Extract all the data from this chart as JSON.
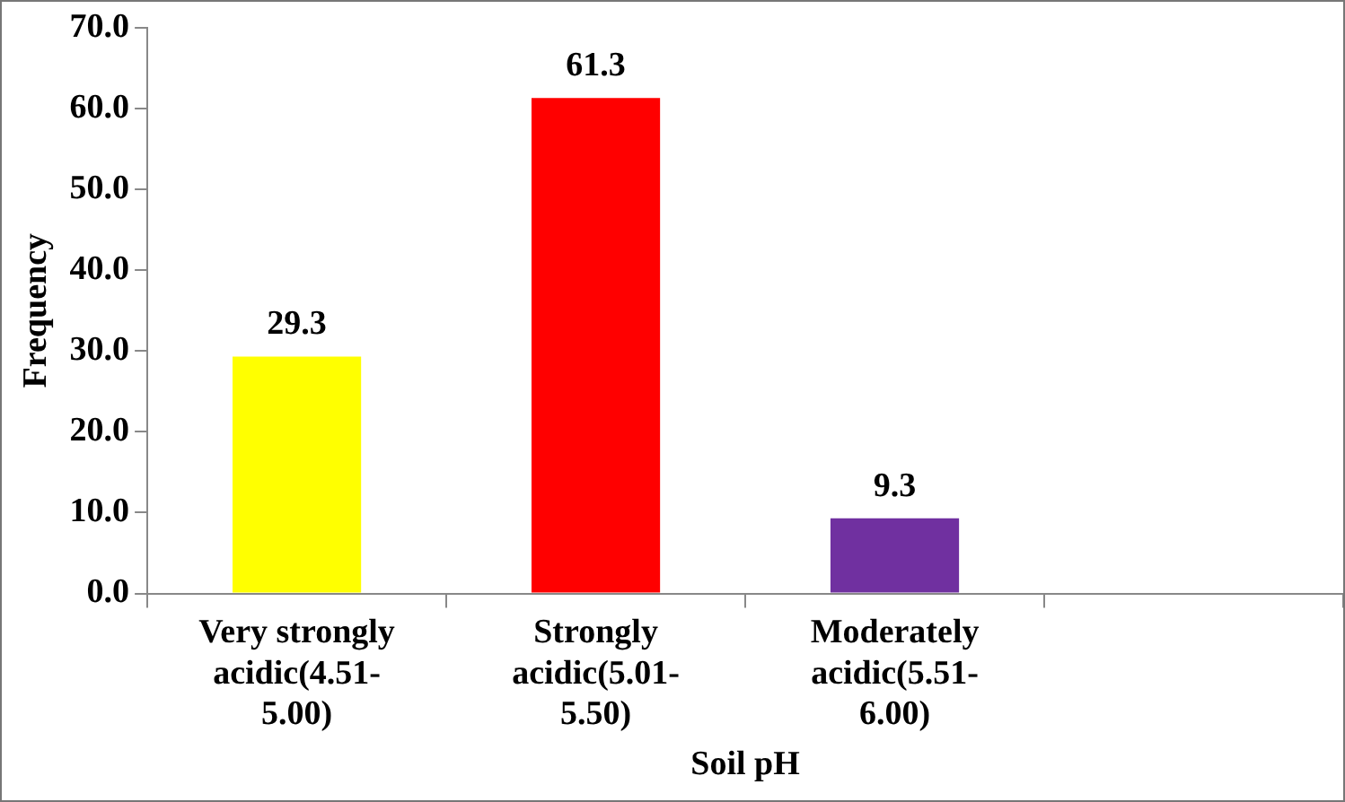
{
  "chart_data": {
    "type": "bar",
    "xlabel": "Soil pH",
    "ylabel": "Frequency",
    "categories": [
      "Very strongly acidic(4.51-5.00)",
      "Strongly acidic(5.01-5.50)",
      "Moderately acidic(5.51-6.00)",
      null
    ],
    "values": [
      29.3,
      61.3,
      9.3,
      null
    ],
    "colors": [
      "#ffff00",
      "#ff0000",
      "#7030a0",
      "#000000"
    ],
    "ylim": [
      0,
      70
    ],
    "yticks": [
      {
        "value": 0,
        "label": "0.0"
      },
      {
        "value": 10,
        "label": "10.0"
      },
      {
        "value": 20,
        "label": "20.0"
      },
      {
        "value": 30,
        "label": "30.0"
      },
      {
        "value": 40,
        "label": "40.0"
      },
      {
        "value": 50,
        "label": "50.0"
      },
      {
        "value": 60,
        "label": "60.0"
      },
      {
        "value": 70,
        "label": "70.0"
      }
    ],
    "grid": false,
    "legend": false,
    "data_labels": true
  }
}
